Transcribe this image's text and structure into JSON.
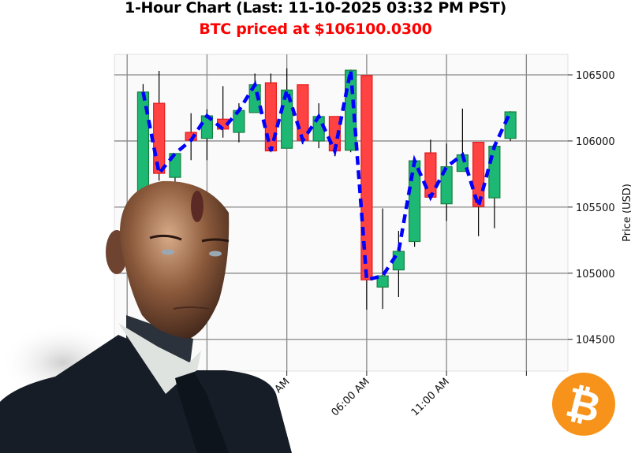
{
  "title": "1-Hour Chart (Last: 11-10-2025 03:32 PM PST)",
  "subtitle": "BTC priced at $106100.0300",
  "logo": {
    "type": "bitcoin-logo",
    "glyph": "₿",
    "color": "#f7931a"
  },
  "mascot": "android-businessman-image",
  "chart_data": {
    "type": "candlestick",
    "ylabel": "Price (USD)",
    "xlabel": "",
    "ylim": [
      104260,
      106655
    ],
    "yticks": [
      104500,
      105000,
      105500,
      106000,
      106500
    ],
    "xtick_labels": [
      {
        "hour": 25,
        "label": "01:00 AM"
      },
      {
        "hour": 30,
        "label": "06:00 AM"
      },
      {
        "hour": 35,
        "label": "11:00 AM"
      }
    ],
    "xgrid_hours": [
      15,
      20,
      25,
      30,
      35,
      40
    ],
    "grid": true,
    "colors": {
      "up": "#1db874",
      "down": "#ff4343",
      "close_line": "#0000ff",
      "background": "#fafafa"
    },
    "candles": [
      {
        "hour": 16,
        "open": 105600,
        "high": 106430,
        "low": 105550,
        "close": 106370
      },
      {
        "hour": 17,
        "open": 106285,
        "high": 106530,
        "low": 105700,
        "close": 105755
      },
      {
        "hour": 18,
        "open": 105725,
        "high": 105905,
        "low": 105650,
        "close": 105905
      },
      {
        "hour": 19,
        "open": 106065,
        "high": 106210,
        "low": 105855,
        "close": 106005
      },
      {
        "hour": 20,
        "open": 106020,
        "high": 106240,
        "low": 105855,
        "close": 106190
      },
      {
        "hour": 21,
        "open": 106165,
        "high": 106415,
        "low": 106025,
        "close": 106090
      },
      {
        "hour": 22,
        "open": 106065,
        "high": 106285,
        "low": 105990,
        "close": 106230
      },
      {
        "hour": 23,
        "open": 106215,
        "high": 106510,
        "low": 106215,
        "close": 106425
      },
      {
        "hour": 24,
        "open": 106440,
        "high": 106510,
        "low": 105915,
        "close": 105925
      },
      {
        "hour": 25,
        "open": 105945,
        "high": 106550,
        "low": 105945,
        "close": 106385
      },
      {
        "hour": 26,
        "open": 106425,
        "high": 106425,
        "low": 105975,
        "close": 106005
      },
      {
        "hour": 27,
        "open": 106000,
        "high": 106285,
        "low": 105945,
        "close": 106185
      },
      {
        "hour": 28,
        "open": 106185,
        "high": 106185,
        "low": 105885,
        "close": 105925
      },
      {
        "hour": 29,
        "open": 105930,
        "high": 106540,
        "low": 105915,
        "close": 106535
      },
      {
        "hour": 30,
        "open": 106495,
        "high": 106495,
        "low": 104725,
        "close": 104950
      },
      {
        "hour": 31,
        "open": 104895,
        "high": 105490,
        "low": 104730,
        "close": 104980
      },
      {
        "hour": 32,
        "open": 105025,
        "high": 105320,
        "low": 104820,
        "close": 105165
      },
      {
        "hour": 33,
        "open": 105240,
        "high": 105850,
        "low": 105200,
        "close": 105850
      },
      {
        "hour": 34,
        "open": 105910,
        "high": 106010,
        "low": 105575,
        "close": 105575
      },
      {
        "hour": 35,
        "open": 105525,
        "high": 105980,
        "low": 105395,
        "close": 105805
      },
      {
        "hour": 36,
        "open": 105770,
        "high": 106245,
        "low": 105770,
        "close": 105895
      },
      {
        "hour": 37,
        "open": 105990,
        "high": 105990,
        "low": 105280,
        "close": 105505
      },
      {
        "hour": 38,
        "open": 105570,
        "high": 105960,
        "low": 105340,
        "close": 105960
      },
      {
        "hour": 39,
        "open": 106020,
        "high": 106225,
        "low": 106000,
        "close": 106220
      }
    ]
  }
}
